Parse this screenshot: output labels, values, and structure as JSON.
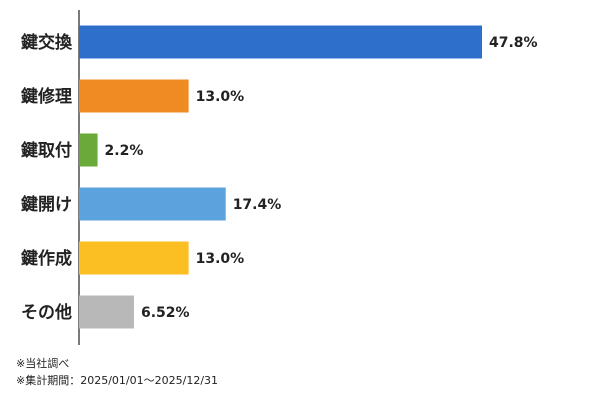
{
  "chart_data": {
    "type": "bar",
    "orientation": "horizontal",
    "title": "",
    "xlabel": "",
    "ylabel": "",
    "categories": [
      "鍵交換",
      "鍵修理",
      "鍵取付",
      "鍵開け",
      "鍵作成",
      "その他"
    ],
    "values": [
      47.8,
      13.0,
      2.2,
      17.4,
      13.0,
      6.52
    ],
    "value_labels": [
      "47.8%",
      "13.0%",
      "2.2%",
      "17.4%",
      "13.0%",
      "6.52%"
    ],
    "colors": [
      "#2f6fcc",
      "#f08a22",
      "#6aaa3a",
      "#5ba3dd",
      "#fbbf24",
      "#b8b8b8"
    ],
    "xlim": [
      0,
      50
    ],
    "grid": false,
    "legend": "none"
  },
  "notes": {
    "source": "※当社調べ",
    "period": "※集計期間：2025/01/01～2025/12/31"
  }
}
